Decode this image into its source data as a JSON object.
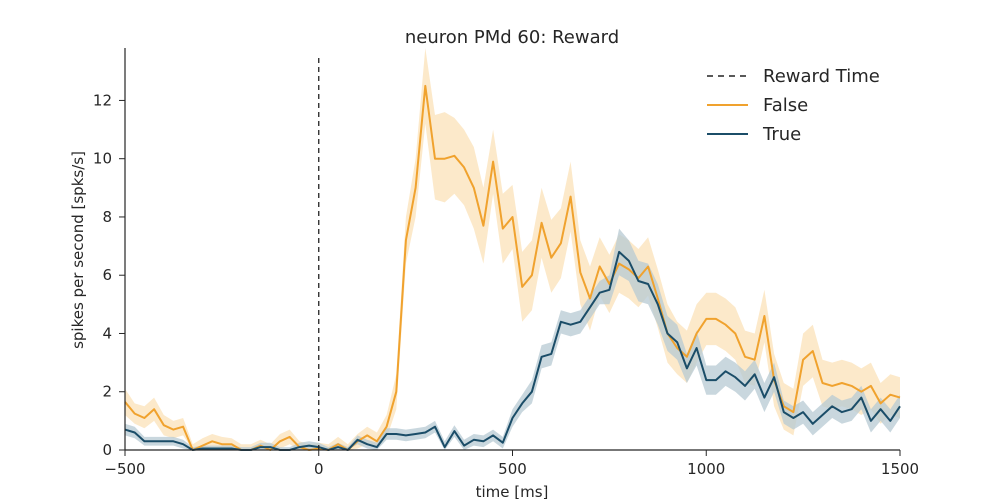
{
  "chart_data": {
    "type": "line",
    "title": "neuron PMd 60: Reward",
    "xlabel": "time [ms]",
    "ylabel": "spikes per second [spks/s]",
    "xlim": [
      -500,
      1500
    ],
    "ylim": [
      0,
      13.8
    ],
    "xticks": [
      -500,
      0,
      500,
      1000,
      1500
    ],
    "yticks": [
      0,
      2,
      4,
      6,
      8,
      10,
      12
    ],
    "xtick_labels": [
      "−500",
      "0",
      "500",
      "1000",
      "1500"
    ],
    "ytick_labels": [
      "0",
      "2",
      "4",
      "6",
      "8",
      "10",
      "12"
    ],
    "grid": false,
    "legend_position": "top-right",
    "vline": {
      "label": "Reward Time",
      "x": 0,
      "color": "#222222",
      "style": "dashed"
    },
    "x": [
      -500,
      -475,
      -450,
      -425,
      -400,
      -375,
      -350,
      -325,
      -300,
      -275,
      -250,
      -225,
      -200,
      -175,
      -150,
      -125,
      -100,
      -75,
      -50,
      -25,
      0,
      25,
      50,
      75,
      100,
      125,
      150,
      175,
      200,
      225,
      250,
      275,
      300,
      325,
      350,
      375,
      400,
      425,
      450,
      475,
      500,
      525,
      550,
      575,
      600,
      625,
      650,
      675,
      700,
      725,
      750,
      775,
      800,
      825,
      850,
      875,
      900,
      925,
      950,
      975,
      1000,
      1025,
      1050,
      1075,
      1100,
      1125,
      1150,
      1175,
      1200,
      1225,
      1250,
      1275,
      1300,
      1325,
      1350,
      1375,
      1400,
      1425,
      1450,
      1475,
      1500
    ],
    "series": [
      {
        "name": "False",
        "color": "#f0a22e",
        "band_color": "#fbe2b8",
        "values": [
          1.65,
          1.25,
          1.1,
          1.4,
          0.85,
          0.7,
          0.8,
          0.0,
          0.15,
          0.3,
          0.2,
          0.2,
          0.0,
          0.0,
          0.15,
          0.0,
          0.3,
          0.45,
          0.1,
          0.0,
          0.05,
          0.0,
          0.2,
          0.0,
          0.3,
          0.5,
          0.3,
          0.8,
          2.0,
          7.2,
          9.0,
          12.5,
          10.0,
          10.0,
          10.1,
          9.7,
          9.0,
          7.7,
          9.9,
          7.6,
          8.0,
          5.6,
          6.0,
          7.8,
          6.6,
          7.1,
          8.7,
          6.1,
          5.2,
          6.3,
          5.7,
          6.4,
          6.2,
          5.9,
          6.3,
          5.2,
          4.0,
          3.5,
          3.2,
          4.0,
          4.5,
          4.5,
          4.3,
          4.0,
          3.2,
          3.1,
          4.6,
          2.4,
          1.5,
          1.3,
          3.1,
          3.4,
          2.3,
          2.2,
          2.3,
          2.2,
          2.0,
          2.2,
          1.6,
          1.9,
          1.8
        ],
        "upper": [
          2.1,
          1.6,
          1.5,
          1.8,
          1.2,
          1.0,
          1.1,
          0.2,
          0.4,
          0.55,
          0.45,
          0.4,
          0.2,
          0.2,
          0.35,
          0.2,
          0.55,
          0.7,
          0.3,
          0.2,
          0.25,
          0.2,
          0.45,
          0.2,
          0.55,
          0.8,
          0.6,
          1.2,
          2.6,
          8.0,
          10.0,
          13.8,
          11.5,
          11.6,
          11.4,
          11.0,
          10.4,
          9.0,
          11.0,
          8.8,
          9.1,
          6.8,
          7.2,
          9.0,
          7.9,
          8.3,
          9.9,
          7.2,
          6.3,
          7.3,
          6.7,
          7.4,
          7.2,
          6.9,
          7.3,
          6.2,
          5.0,
          4.4,
          4.1,
          5.0,
          5.4,
          5.4,
          5.2,
          4.9,
          4.1,
          4.0,
          5.5,
          3.3,
          2.3,
          2.1,
          4.0,
          4.3,
          3.1,
          3.0,
          3.1,
          3.0,
          2.8,
          3.0,
          2.3,
          2.6,
          2.5
        ],
        "lower": [
          1.2,
          0.9,
          0.75,
          1.0,
          0.5,
          0.4,
          0.5,
          0.0,
          0.0,
          0.05,
          0.0,
          0.0,
          0.0,
          0.0,
          0.0,
          0.0,
          0.05,
          0.2,
          0.0,
          0.0,
          0.0,
          0.0,
          0.0,
          0.0,
          0.05,
          0.2,
          0.05,
          0.4,
          1.4,
          6.4,
          8.0,
          11.2,
          8.6,
          8.5,
          8.8,
          8.4,
          7.6,
          6.4,
          8.8,
          6.4,
          6.9,
          4.4,
          4.8,
          6.6,
          5.4,
          5.9,
          7.5,
          5.0,
          4.1,
          5.3,
          4.7,
          5.4,
          5.2,
          4.9,
          5.3,
          4.2,
          3.0,
          2.6,
          2.3,
          3.0,
          3.6,
          3.6,
          3.4,
          3.1,
          2.3,
          2.2,
          3.7,
          1.5,
          0.7,
          0.5,
          2.2,
          2.5,
          1.5,
          1.4,
          1.5,
          1.4,
          1.2,
          1.4,
          0.9,
          1.2,
          1.1
        ]
      },
      {
        "name": "True",
        "color": "#1b4d68",
        "band_color": "#b7c9d3",
        "values": [
          0.7,
          0.6,
          0.3,
          0.3,
          0.3,
          0.3,
          0.2,
          0.0,
          0.05,
          0.05,
          0.05,
          0.05,
          0.0,
          0.0,
          0.1,
          0.1,
          0.0,
          0.0,
          0.1,
          0.15,
          0.1,
          0.0,
          0.1,
          0.0,
          0.35,
          0.2,
          0.1,
          0.55,
          0.55,
          0.5,
          0.55,
          0.6,
          0.8,
          0.1,
          0.65,
          0.15,
          0.35,
          0.3,
          0.5,
          0.25,
          1.1,
          1.6,
          2.0,
          3.2,
          3.3,
          4.4,
          4.3,
          4.4,
          4.9,
          5.4,
          5.5,
          6.8,
          6.5,
          5.8,
          5.7,
          5.0,
          4.0,
          3.7,
          2.8,
          3.5,
          2.4,
          2.4,
          2.7,
          2.5,
          2.2,
          2.6,
          1.8,
          2.5,
          1.3,
          1.1,
          1.3,
          0.9,
          1.2,
          1.5,
          1.3,
          1.4,
          1.8,
          1.0,
          1.4,
          1.0,
          1.5
        ],
        "upper": [
          0.9,
          0.8,
          0.45,
          0.45,
          0.45,
          0.45,
          0.35,
          0.1,
          0.15,
          0.15,
          0.15,
          0.15,
          0.1,
          0.1,
          0.25,
          0.25,
          0.1,
          0.1,
          0.25,
          0.3,
          0.25,
          0.1,
          0.25,
          0.1,
          0.5,
          0.35,
          0.25,
          0.75,
          0.75,
          0.7,
          0.75,
          0.8,
          1.0,
          0.3,
          0.85,
          0.35,
          0.55,
          0.5,
          0.7,
          0.45,
          1.4,
          1.9,
          2.4,
          3.6,
          3.7,
          4.8,
          4.7,
          4.8,
          5.3,
          5.8,
          6.0,
          7.6,
          7.2,
          6.5,
          6.4,
          5.7,
          4.6,
          4.3,
          3.3,
          4.1,
          2.9,
          2.9,
          3.2,
          3.0,
          2.7,
          3.1,
          2.3,
          3.0,
          1.7,
          1.5,
          1.7,
          1.3,
          1.6,
          1.9,
          1.7,
          1.8,
          2.2,
          1.4,
          1.8,
          1.4,
          1.9
        ],
        "lower": [
          0.5,
          0.4,
          0.15,
          0.15,
          0.15,
          0.15,
          0.05,
          0.0,
          0.0,
          0.0,
          0.0,
          0.0,
          0.0,
          0.0,
          0.0,
          0.0,
          0.0,
          0.0,
          0.0,
          0.0,
          0.0,
          0.0,
          0.0,
          0.0,
          0.2,
          0.05,
          0.0,
          0.35,
          0.35,
          0.3,
          0.35,
          0.4,
          0.6,
          0.0,
          0.45,
          0.0,
          0.15,
          0.1,
          0.3,
          0.05,
          0.8,
          1.3,
          1.6,
          2.8,
          2.9,
          4.0,
          3.9,
          4.0,
          4.5,
          5.0,
          5.0,
          6.0,
          5.8,
          5.1,
          5.0,
          4.3,
          3.4,
          3.1,
          2.3,
          2.9,
          1.9,
          1.9,
          2.2,
          2.0,
          1.7,
          2.1,
          1.3,
          2.0,
          0.9,
          0.7,
          0.9,
          0.5,
          0.8,
          1.1,
          0.9,
          1.0,
          1.4,
          0.6,
          1.0,
          0.6,
          1.1
        ]
      }
    ]
  }
}
